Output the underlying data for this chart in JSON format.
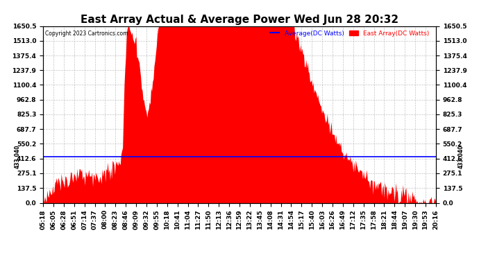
{
  "title": "East Array Actual & Average Power Wed Jun 28 20:32",
  "copyright": "Copyright 2023 Cartronics.com",
  "legend_avg": "Average(DC Watts)",
  "legend_east": "East Array(DC Watts)",
  "average_line": 433.04,
  "avg_label": "433.040",
  "ylim": [
    0.0,
    1650.5
  ],
  "yticks": [
    0.0,
    137.5,
    275.1,
    412.6,
    550.2,
    687.7,
    825.3,
    962.8,
    1100.4,
    1237.9,
    1375.4,
    1513.0,
    1650.5
  ],
  "fill_color": "#ff0000",
  "avg_line_color": "#0000ff",
  "background_color": "#ffffff",
  "grid_color": "#aaaaaa",
  "title_fontsize": 11,
  "tick_fontsize": 6.5,
  "xtick_labels": [
    "05:18",
    "06:05",
    "06:28",
    "06:51",
    "07:14",
    "07:37",
    "08:00",
    "08:23",
    "08:46",
    "09:09",
    "09:32",
    "09:55",
    "10:18",
    "10:41",
    "11:04",
    "11:27",
    "11:50",
    "12:13",
    "12:36",
    "12:59",
    "13:22",
    "13:45",
    "14:08",
    "14:31",
    "14:54",
    "15:17",
    "15:40",
    "16:03",
    "16:26",
    "16:49",
    "17:12",
    "17:35",
    "17:58",
    "18:21",
    "18:44",
    "19:07",
    "19:30",
    "19:53",
    "20:16"
  ]
}
